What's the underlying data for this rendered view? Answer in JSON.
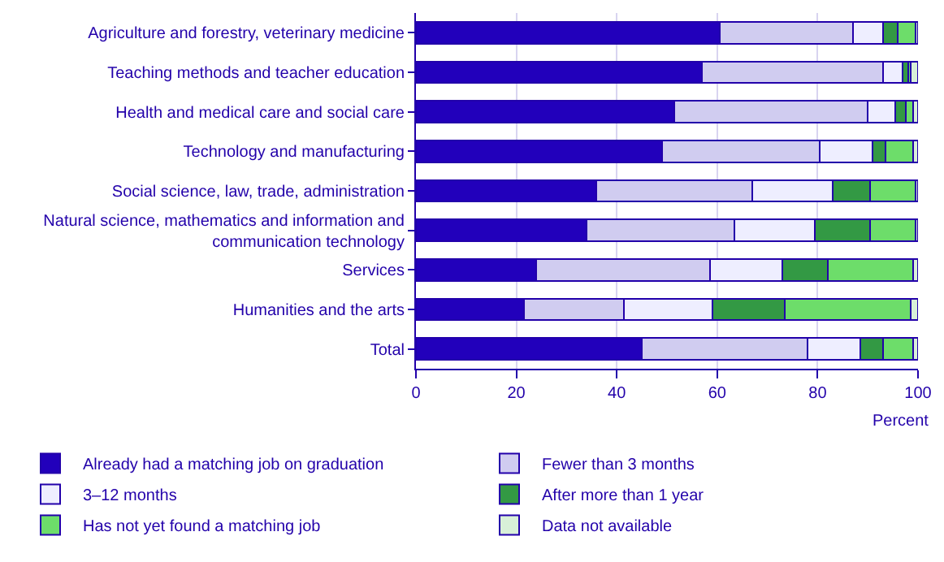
{
  "chart_data": {
    "type": "bar",
    "orientation": "horizontal",
    "stacked": true,
    "categories": [
      "Agriculture and forestry, veterinary medicine",
      "Teaching methods and teacher education",
      "Health and medical care and social care",
      "Technology and manufacturing",
      "Social science, law, trade, administration",
      "Natural science, mathematics and information and communication technology",
      "Services",
      "Humanities and the arts",
      "Total"
    ],
    "series": [
      {
        "name": "Already had a matching job on graduation",
        "color": "#2200bb",
        "values": [
          60.5,
          57,
          51.5,
          49,
          36,
          34,
          24,
          21.5,
          45
        ]
      },
      {
        "name": "Fewer than 3 months",
        "color": "#d0ccf0",
        "values": [
          26.5,
          36,
          38.5,
          31.5,
          31,
          29.5,
          34.5,
          20,
          33
        ]
      },
      {
        "name": "3–12 months",
        "color": "#eeeeff",
        "values": [
          6,
          4,
          5.5,
          10.5,
          16,
          16,
          14.5,
          17.5,
          10.5
        ]
      },
      {
        "name": "After more than 1 year",
        "color": "#339944",
        "values": [
          3,
          1,
          2,
          2.5,
          7.5,
          11,
          9,
          14.5,
          4.5
        ]
      },
      {
        "name": "Has not yet found a matching job",
        "color": "#6ddd6a",
        "values": [
          3.5,
          0.5,
          1.5,
          5.5,
          9,
          9,
          17,
          25,
          6
        ]
      },
      {
        "name": "Data not available",
        "color": "#d8f0d8",
        "values": [
          0.5,
          1.5,
          1,
          1,
          0.5,
          0.5,
          1,
          1.5,
          1
        ]
      }
    ],
    "xlabel": "Percent",
    "xlim": [
      0,
      100
    ],
    "xticks": [
      0,
      20,
      40,
      60,
      80,
      100
    ],
    "grid": "x",
    "legend": "bottom"
  }
}
